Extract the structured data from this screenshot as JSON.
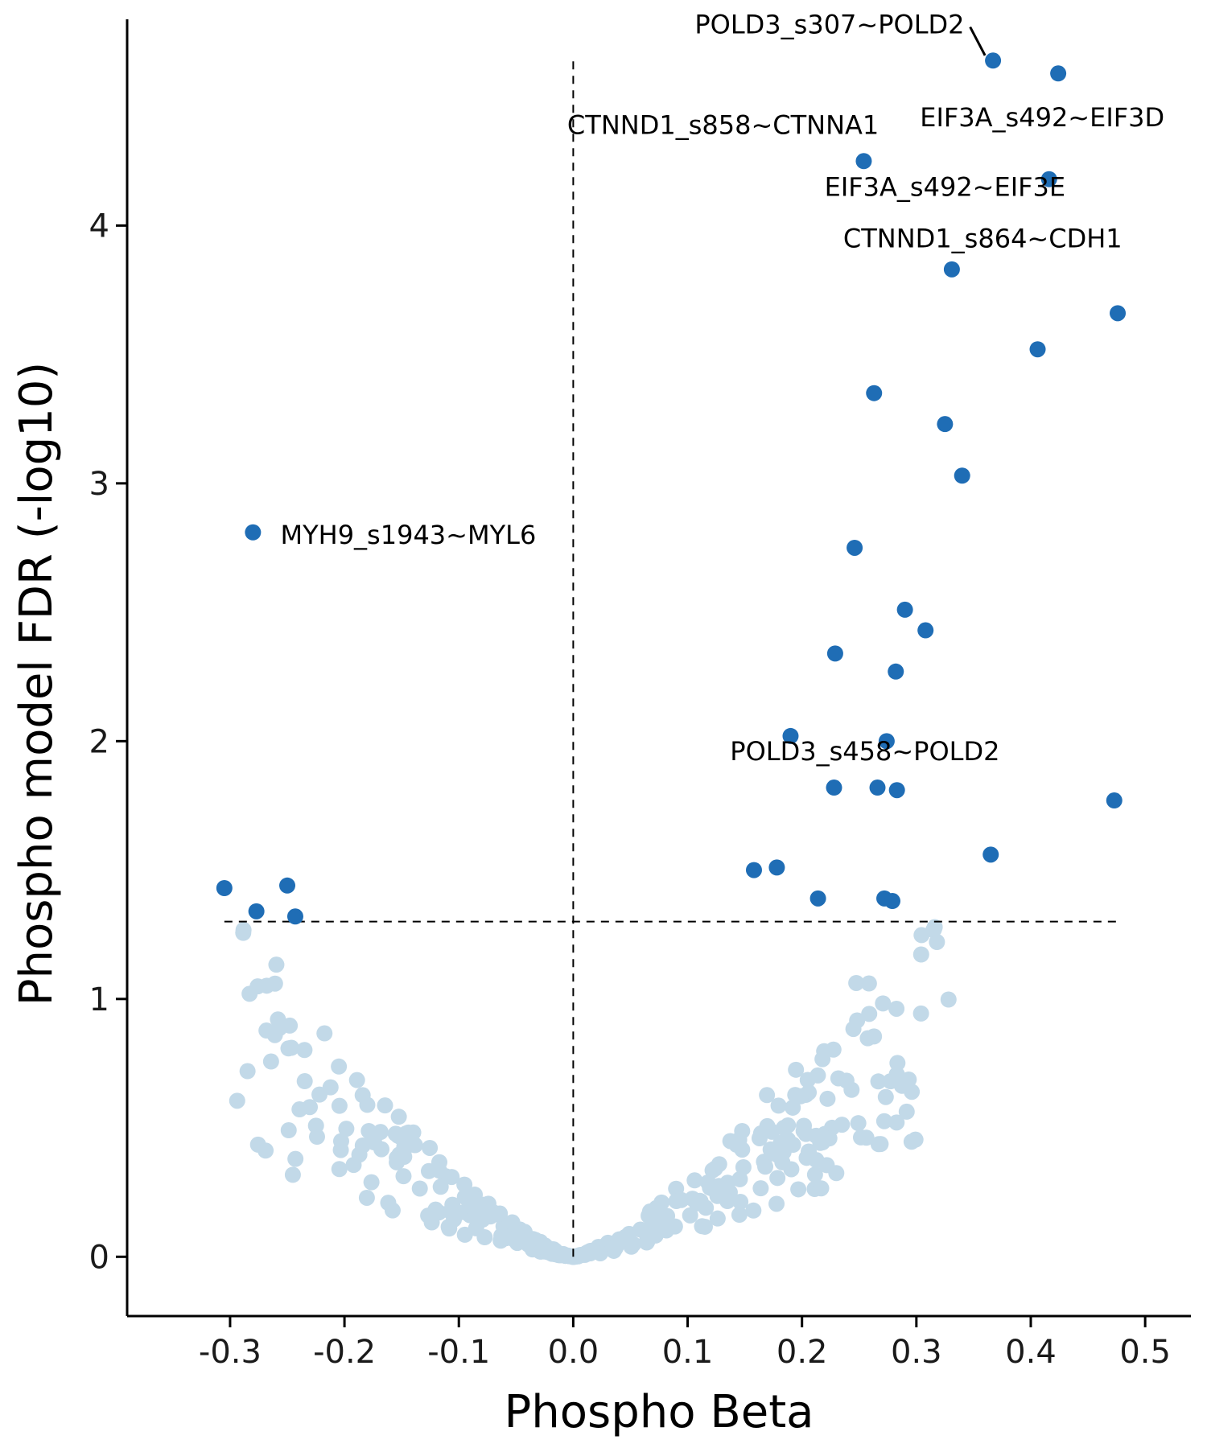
{
  "chart_data": {
    "type": "scatter",
    "title": "",
    "xlabel": "Phospho Beta",
    "ylabel": "Phospho model FDR (-log10)",
    "xlim": [
      -0.39,
      0.54
    ],
    "ylim": [
      -0.23,
      4.8
    ],
    "x_ticks": [
      "-0.3",
      "-0.2",
      "-0.1",
      "0.0",
      "0.1",
      "0.2",
      "0.3",
      "0.4",
      "0.5"
    ],
    "x_tick_values": [
      -0.3,
      -0.2,
      -0.1,
      0.0,
      0.1,
      0.2,
      0.3,
      0.4,
      0.5
    ],
    "y_ticks": [
      "0",
      "1",
      "2",
      "3",
      "4"
    ],
    "y_tick_values": [
      0,
      1,
      2,
      3,
      4
    ],
    "grid": false,
    "legend": "none",
    "colors": {
      "significant": "#1f6db5",
      "not_significant": "#c2d9e8"
    },
    "threshold_line": {
      "y": 1.3,
      "x_range": [
        -0.305,
        0.475
      ]
    },
    "vertical_line": {
      "x": 0.0,
      "y_range": [
        0.0,
        4.65
      ]
    },
    "significant_points": [
      {
        "x": 0.367,
        "y": 4.64
      },
      {
        "x": 0.424,
        "y": 4.59
      },
      {
        "x": 0.254,
        "y": 4.25
      },
      {
        "x": 0.416,
        "y": 4.18
      },
      {
        "x": 0.331,
        "y": 3.83
      },
      {
        "x": 0.476,
        "y": 3.66
      },
      {
        "x": 0.406,
        "y": 3.52
      },
      {
        "x": 0.263,
        "y": 3.35
      },
      {
        "x": 0.325,
        "y": 3.23
      },
      {
        "x": 0.34,
        "y": 3.03
      },
      {
        "x": -0.28,
        "y": 2.81
      },
      {
        "x": 0.246,
        "y": 2.75
      },
      {
        "x": 0.29,
        "y": 2.51
      },
      {
        "x": 0.308,
        "y": 2.43
      },
      {
        "x": 0.229,
        "y": 2.34
      },
      {
        "x": 0.282,
        "y": 2.27
      },
      {
        "x": 0.19,
        "y": 2.02
      },
      {
        "x": 0.274,
        "y": 2.0
      },
      {
        "x": 0.228,
        "y": 1.82
      },
      {
        "x": 0.266,
        "y": 1.82
      },
      {
        "x": 0.283,
        "y": 1.81
      },
      {
        "x": 0.473,
        "y": 1.77
      },
      {
        "x": 0.365,
        "y": 1.56
      },
      {
        "x": 0.178,
        "y": 1.51
      },
      {
        "x": 0.158,
        "y": 1.5
      },
      {
        "x": -0.305,
        "y": 1.43
      },
      {
        "x": -0.25,
        "y": 1.44
      },
      {
        "x": 0.214,
        "y": 1.39
      },
      {
        "x": 0.272,
        "y": 1.39
      },
      {
        "x": 0.279,
        "y": 1.38
      },
      {
        "x": -0.277,
        "y": 1.34
      },
      {
        "x": -0.243,
        "y": 1.32
      }
    ],
    "annotations": [
      {
        "text": "POLD3_s307~POLD2",
        "x": 0.342,
        "y": 4.78,
        "anchor": "end",
        "leader_to": {
          "x": 0.36,
          "y": 4.66
        },
        "leader_from": {
          "x": 0.347,
          "y": 4.77
        }
      },
      {
        "text": "CTNND1_s858~CTNNA1",
        "x": 0.131,
        "y": 4.39,
        "anchor": "middle"
      },
      {
        "text": "EIF3A_s492~EIF3D",
        "x": 0.41,
        "y": 4.42,
        "anchor": "middle"
      },
      {
        "text": "EIF3A_s492~EIF3E",
        "x": 0.325,
        "y": 4.15,
        "anchor": "middle"
      },
      {
        "text": "CTNND1_s864~CDH1",
        "x": 0.358,
        "y": 3.95,
        "anchor": "middle"
      },
      {
        "text": "MYH9_s1943~MYL6",
        "x": -0.256,
        "y": 2.8,
        "anchor": "start"
      },
      {
        "text": "POLD3_s458~POLD2",
        "x": 0.255,
        "y": 1.96,
        "anchor": "middle"
      }
    ]
  }
}
